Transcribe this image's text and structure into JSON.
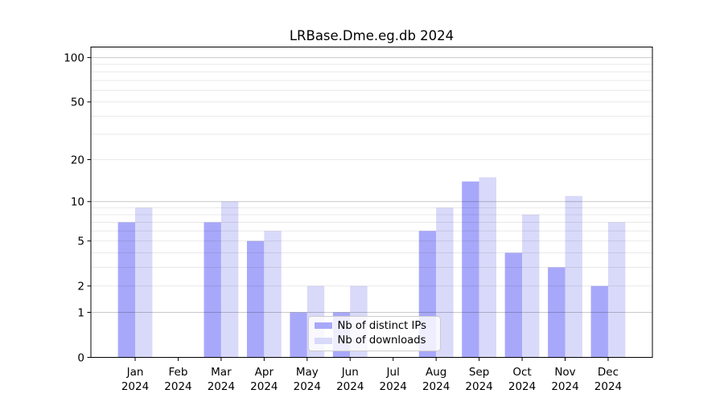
{
  "chart_data": {
    "type": "bar",
    "title": "LRBase.Dme.eg.db 2024",
    "categories": [
      "Jan 2024",
      "Feb 2024",
      "Mar 2024",
      "Apr 2024",
      "May 2024",
      "Jun 2024",
      "Jul 2024",
      "Aug 2024",
      "Sep 2024",
      "Oct 2024",
      "Nov 2024",
      "Dec 2024"
    ],
    "series": [
      {
        "name": "Nb of distinct IPs",
        "color": "#a8a8fa",
        "values": [
          7,
          0,
          7,
          5,
          1,
          1,
          0,
          6,
          14,
          4,
          3,
          2
        ]
      },
      {
        "name": "Nb of downloads",
        "color": "#d9d9fa",
        "values": [
          9,
          0,
          10,
          6,
          2,
          2,
          0,
          9,
          15,
          8,
          11,
          7
        ]
      }
    ],
    "xlabel": "",
    "ylabel": "",
    "yticks": [
      0,
      1,
      2,
      5,
      10,
      20,
      50,
      100
    ],
    "ylim": [
      0,
      100
    ],
    "scale": "log1p",
    "grid": "on",
    "legend_position": "lower center",
    "colors": {
      "axis": "#000000",
      "major_grid": "rgba(0,0,0,0.21)",
      "minor_grid": "rgba(0,0,0,0.085)",
      "background": "#ffffff"
    }
  }
}
